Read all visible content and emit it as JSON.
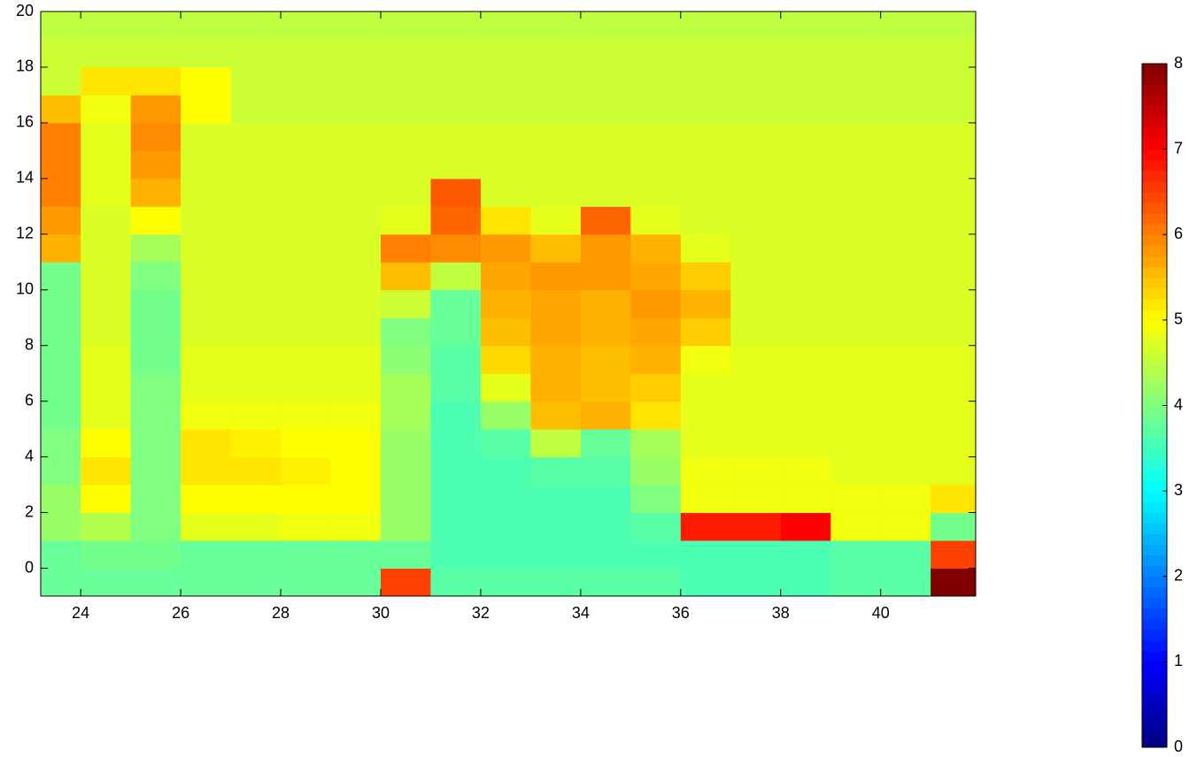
{
  "chart_data": {
    "type": "heatmap",
    "colormap": "jet",
    "x": [
      23.5,
      24.5,
      25.5,
      26.5,
      27.5,
      28.5,
      29.5,
      30.5,
      31.5,
      32.5,
      33.5,
      34.5,
      35.5,
      36.5,
      37.5,
      38.5,
      39.5,
      40.5,
      41.5
    ],
    "y": [
      -0.5,
      0.5,
      1.5,
      2.5,
      3.5,
      4.5,
      5.5,
      6.5,
      7.5,
      8.5,
      9.5,
      10.5,
      11.5,
      12.5,
      13.5,
      14.5,
      15.5,
      16.5,
      17.5,
      18.5,
      19.5
    ],
    "z": [
      [
        3.8,
        3.8,
        3.8,
        3.8,
        3.8,
        3.8,
        3.8,
        6.5,
        3.7,
        3.7,
        3.7,
        3.7,
        3.7,
        3.6,
        3.6,
        3.6,
        3.7,
        3.7,
        8
      ],
      [
        3.8,
        3.9,
        3.9,
        3.8,
        3.8,
        3.8,
        3.8,
        3.8,
        3.6,
        3.6,
        3.6,
        3.6,
        3.6,
        3.6,
        3.6,
        3.6,
        3.7,
        3.7,
        6.5
      ],
      [
        4.2,
        4.4,
        4,
        4.8,
        4.8,
        4.9,
        4.9,
        4.2,
        3.6,
        3.6,
        3.6,
        3.6,
        3.7,
        6.8,
        6.8,
        7,
        4.9,
        4.9,
        3.9
      ],
      [
        4.2,
        5,
        4,
        5,
        5,
        5,
        5,
        4.2,
        3.6,
        3.6,
        3.6,
        3.6,
        4,
        4.9,
        4.9,
        4.9,
        4.9,
        4.9,
        5.2
      ],
      [
        4,
        5.2,
        4,
        5.2,
        5.2,
        5.1,
        5,
        4.2,
        3.6,
        3.6,
        3.7,
        3.7,
        4.2,
        4.9,
        4.9,
        4.9,
        4.8,
        4.8,
        4.8
      ],
      [
        4,
        5,
        4,
        5.2,
        5.1,
        5,
        5,
        4.2,
        3.6,
        3.7,
        4.5,
        3.8,
        4.3,
        4.8,
        4.8,
        4.8,
        4.8,
        4.8,
        4.8
      ],
      [
        3.9,
        4.8,
        4,
        4.9,
        4.9,
        4.9,
        4.9,
        4.3,
        3.6,
        4.2,
        5.5,
        5.6,
        5.2,
        4.8,
        4.8,
        4.8,
        4.8,
        4.8,
        4.8
      ],
      [
        3.9,
        4.8,
        4,
        4.8,
        4.8,
        4.8,
        4.8,
        4.3,
        3.7,
        4.8,
        5.6,
        5.5,
        5.4,
        4.8,
        4.8,
        4.8,
        4.8,
        4.8,
        4.8
      ],
      [
        3.9,
        4.8,
        3.9,
        4.8,
        4.8,
        4.8,
        4.8,
        4.1,
        3.7,
        5.3,
        5.6,
        5.5,
        5.6,
        4.9,
        4.8,
        4.8,
        4.8,
        4.8,
        4.8
      ],
      [
        3.9,
        4.7,
        3.9,
        4.7,
        4.7,
        4.7,
        4.7,
        4,
        3.8,
        5.5,
        5.7,
        5.6,
        5.7,
        5.4,
        4.7,
        4.7,
        4.7,
        4.7,
        4.7
      ],
      [
        3.9,
        4.7,
        3.9,
        4.7,
        4.7,
        4.7,
        4.7,
        4.6,
        3.8,
        5.6,
        5.7,
        5.6,
        5.8,
        5.6,
        4.7,
        4.7,
        4.7,
        4.7,
        4.7
      ],
      [
        3.9,
        4.7,
        4,
        4.7,
        4.7,
        4.7,
        4.7,
        5.5,
        4.5,
        5.7,
        5.8,
        5.8,
        5.7,
        5.4,
        4.7,
        4.7,
        4.7,
        4.7,
        4.7
      ],
      [
        5.6,
        4.7,
        4.3,
        4.7,
        4.7,
        4.7,
        4.7,
        6,
        5.9,
        5.8,
        5.5,
        5.8,
        5.6,
        4.8,
        4.7,
        4.7,
        4.7,
        4.7,
        4.7
      ],
      [
        5.8,
        4.7,
        5,
        4.7,
        4.7,
        4.7,
        4.7,
        4.8,
        6.2,
        5.2,
        4.8,
        6.2,
        4.8,
        4.7,
        4.7,
        4.7,
        4.7,
        4.7,
        4.7
      ],
      [
        6,
        4.8,
        5.6,
        4.7,
        4.7,
        4.7,
        4.7,
        4.7,
        6.3,
        4.7,
        4.7,
        4.7,
        4.7,
        4.7,
        4.7,
        4.7,
        4.7,
        4.7,
        4.7
      ],
      [
        6,
        4.8,
        5.8,
        4.7,
        4.7,
        4.7,
        4.7,
        4.7,
        4.7,
        4.7,
        4.7,
        4.7,
        4.7,
        4.7,
        4.7,
        4.7,
        4.7,
        4.7,
        4.7
      ],
      [
        6,
        4.8,
        5.9,
        4.7,
        4.7,
        4.7,
        4.7,
        4.7,
        4.7,
        4.7,
        4.7,
        4.7,
        4.7,
        4.7,
        4.7,
        4.7,
        4.7,
        4.7,
        4.7
      ],
      [
        5.5,
        4.9,
        5.8,
        5,
        4.6,
        4.6,
        4.6,
        4.6,
        4.6,
        4.6,
        4.6,
        4.6,
        4.6,
        4.6,
        4.6,
        4.6,
        4.6,
        4.6,
        4.6
      ],
      [
        4.6,
        5.2,
        5.2,
        5,
        4.6,
        4.6,
        4.6,
        4.6,
        4.6,
        4.6,
        4.6,
        4.6,
        4.6,
        4.6,
        4.6,
        4.6,
        4.6,
        4.6,
        4.6
      ],
      [
        4.6,
        4.6,
        4.6,
        4.6,
        4.6,
        4.6,
        4.6,
        4.6,
        4.6,
        4.6,
        4.6,
        4.6,
        4.6,
        4.6,
        4.6,
        4.6,
        4.6,
        4.6,
        4.6
      ],
      [
        4.5,
        4.5,
        4.5,
        4.5,
        4.5,
        4.5,
        4.5,
        4.5,
        4.5,
        4.5,
        4.5,
        4.5,
        4.5,
        4.5,
        4.5,
        4.5,
        4.5,
        4.5,
        4.5
      ]
    ],
    "xlim": [
      23.2,
      41.9
    ],
    "xticks": [
      24,
      26,
      28,
      30,
      32,
      34,
      36,
      38,
      40
    ],
    "ylim": [
      -1,
      20
    ],
    "yticks": [
      0,
      2,
      4,
      6,
      8,
      10,
      12,
      14,
      16,
      18,
      20
    ],
    "clim": [
      0,
      8
    ],
    "cticks": [
      0,
      1,
      2,
      3,
      4,
      5,
      6,
      7,
      8
    ]
  }
}
